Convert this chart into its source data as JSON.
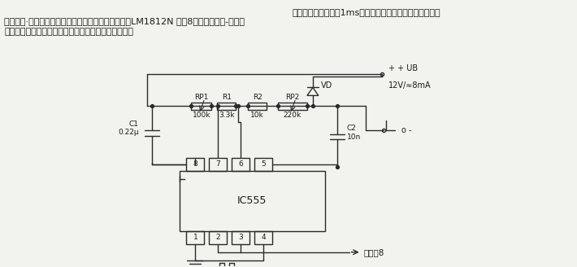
{
  "bg_color": "#f2f2ee",
  "text_color": "#1a1a1a",
  "line_color": "#2a2a2a",
  "title_line1": "脉冲宽度持续时间为1ms的辅助振荡器电路。用于产生触发",
  "title_line2": "脉冲或使·串振荡波形中止。其输出通过调制输入端（LM1812N 引脚8）加入到接收-发射集",
  "title_line3": "成电路上。辅助振荡的校准同所测量的距离大小有关。",
  "supply_label": "+ UB",
  "supply_val": "12V/≈8mA",
  "pin8_label": "至引脚8",
  "ic_label": "IC555",
  "vd_label": "VD",
  "rp1_label1": "RP1",
  "rp1_label2": "100k",
  "r1_label1": "R1",
  "r1_label2": "3.3k",
  "r2_label1": "R2",
  "r2_label2": "10k",
  "rp2_label1": "RP2",
  "rp2_label2": "220k",
  "c1_label1": "C1",
  "c1_label2": "0.22μ",
  "c2_label1": "C2",
  "c2_label2": "10n",
  "pins_top": [
    "8",
    "7",
    "6",
    "5"
  ],
  "pins_bot": [
    "1",
    "2",
    "3",
    "4"
  ]
}
